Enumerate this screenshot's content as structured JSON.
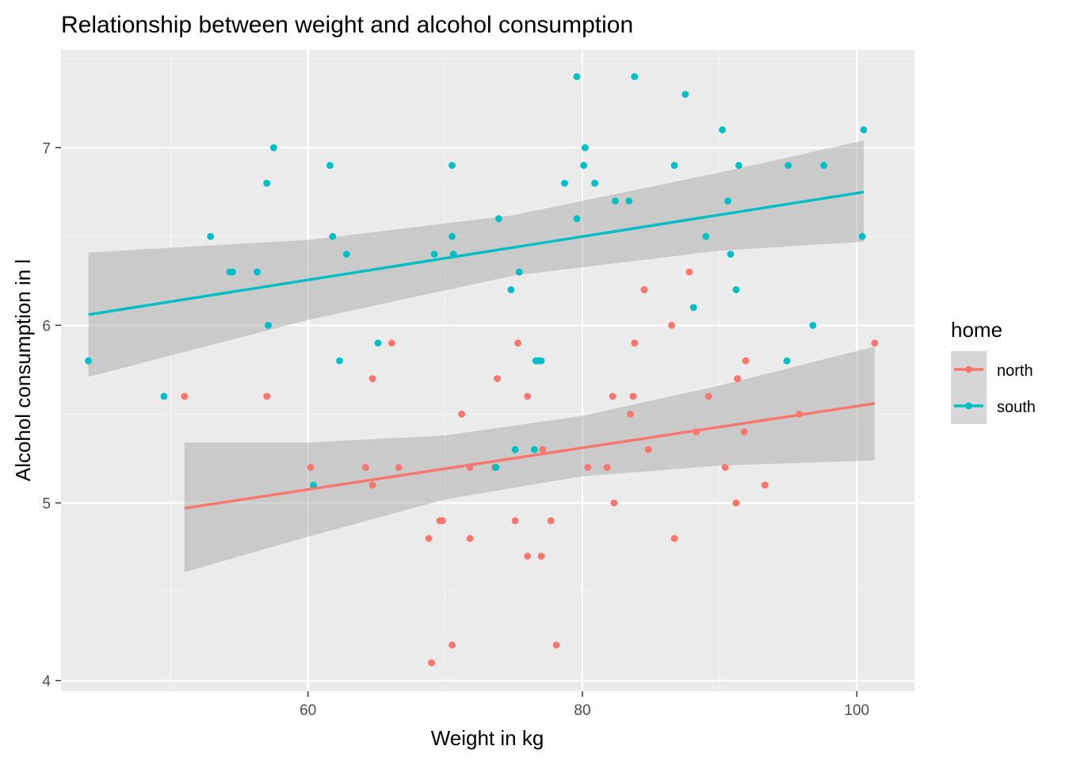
{
  "colors": {
    "panel_bg": "#EBEBEB",
    "grid_major": "#FFFFFF",
    "grid_minor": "#F5F5F5",
    "ribbon": "#999999",
    "north": "#F8766D",
    "south": "#00BFC4",
    "tick": "#333333"
  },
  "chart_data": {
    "type": "scatter",
    "title": "Relationship between weight and alcohol consumption",
    "xlabel": "Weight in kg",
    "ylabel": "Alcohol consumption in l",
    "xlim": [
      42,
      104.2
    ],
    "ylim": [
      3.94,
      7.55
    ],
    "x_ticks": [
      60,
      80,
      100
    ],
    "x_tick_labels": [
      "60",
      "80",
      "100"
    ],
    "y_ticks": [
      4,
      5,
      6,
      7
    ],
    "y_tick_labels": [
      "4",
      "5",
      "6",
      "7"
    ],
    "grid": true,
    "legend": {
      "title": "home",
      "position": "right"
    },
    "series": [
      {
        "name": "north",
        "color": "#F8766D",
        "points": [
          [
            51.0,
            5.6
          ],
          [
            57.0,
            5.6
          ],
          [
            60.2,
            5.2
          ],
          [
            64.2,
            5.2
          ],
          [
            64.7,
            5.7
          ],
          [
            64.7,
            5.1
          ],
          [
            66.1,
            5.9
          ],
          [
            66.6,
            5.2
          ],
          [
            68.8,
            4.8
          ],
          [
            69.0,
            4.1
          ],
          [
            69.6,
            4.9
          ],
          [
            69.8,
            4.9
          ],
          [
            70.5,
            4.2
          ],
          [
            71.2,
            5.5
          ],
          [
            71.8,
            5.2
          ],
          [
            71.8,
            4.8
          ],
          [
            73.6,
            5.2
          ],
          [
            73.8,
            5.7
          ],
          [
            75.1,
            4.9
          ],
          [
            75.3,
            5.9
          ],
          [
            76.0,
            4.7
          ],
          [
            76.0,
            5.6
          ],
          [
            77.0,
            4.7
          ],
          [
            77.1,
            5.3
          ],
          [
            77.7,
            4.9
          ],
          [
            78.1,
            4.2
          ],
          [
            80.4,
            5.2
          ],
          [
            81.8,
            5.2
          ],
          [
            82.2,
            5.6
          ],
          [
            82.3,
            5.0
          ],
          [
            83.5,
            5.5
          ],
          [
            83.7,
            5.6
          ],
          [
            83.8,
            5.9
          ],
          [
            84.5,
            6.2
          ],
          [
            84.8,
            5.3
          ],
          [
            86.5,
            6.0
          ],
          [
            86.7,
            4.8
          ],
          [
            87.8,
            6.3
          ],
          [
            88.3,
            5.4
          ],
          [
            89.2,
            5.6
          ],
          [
            90.4,
            5.2
          ],
          [
            91.2,
            5.0
          ],
          [
            91.3,
            5.7
          ],
          [
            91.8,
            5.4
          ],
          [
            91.9,
            5.8
          ],
          [
            93.3,
            5.1
          ],
          [
            95.8,
            5.5
          ],
          [
            101.3,
            5.9
          ]
        ],
        "fit": {
          "x": [
            51.0,
            101.3
          ],
          "y": [
            4.97,
            5.56
          ]
        },
        "ci": {
          "x": [
            51.0,
            60,
            70,
            80,
            90,
            101.3
          ],
          "upper": [
            5.34,
            5.34,
            5.38,
            5.49,
            5.66,
            5.88
          ],
          "lower": [
            4.61,
            4.81,
            5.02,
            5.15,
            5.21,
            5.24
          ]
        }
      },
      {
        "name": "south",
        "color": "#00BFC4",
        "points": [
          [
            44.0,
            5.8
          ],
          [
            49.5,
            5.6
          ],
          [
            52.9,
            6.5
          ],
          [
            54.3,
            6.3
          ],
          [
            54.5,
            6.3
          ],
          [
            56.3,
            6.3
          ],
          [
            57.0,
            6.8
          ],
          [
            57.1,
            6.0
          ],
          [
            57.5,
            7.0
          ],
          [
            60.4,
            5.1
          ],
          [
            61.6,
            6.9
          ],
          [
            61.8,
            6.5
          ],
          [
            62.3,
            5.8
          ],
          [
            62.8,
            6.4
          ],
          [
            65.1,
            5.9
          ],
          [
            69.2,
            6.4
          ],
          [
            70.5,
            6.9
          ],
          [
            70.5,
            6.5
          ],
          [
            70.6,
            6.4
          ],
          [
            73.7,
            5.2
          ],
          [
            73.9,
            6.6
          ],
          [
            74.8,
            6.2
          ],
          [
            75.1,
            5.3
          ],
          [
            75.4,
            6.3
          ],
          [
            76.5,
            5.3
          ],
          [
            76.6,
            5.8
          ],
          [
            76.8,
            5.8
          ],
          [
            77.0,
            5.8
          ],
          [
            78.7,
            6.8
          ],
          [
            79.6,
            7.4
          ],
          [
            79.6,
            6.6
          ],
          [
            80.1,
            6.9
          ],
          [
            80.2,
            7.0
          ],
          [
            80.9,
            6.8
          ],
          [
            82.4,
            6.7
          ],
          [
            83.4,
            6.7
          ],
          [
            83.8,
            7.4
          ],
          [
            86.7,
            6.9
          ],
          [
            87.5,
            7.3
          ],
          [
            88.1,
            6.1
          ],
          [
            89.0,
            6.5
          ],
          [
            90.2,
            7.1
          ],
          [
            90.6,
            6.7
          ],
          [
            90.8,
            6.4
          ],
          [
            91.2,
            6.2
          ],
          [
            91.4,
            6.9
          ],
          [
            94.9,
            5.8
          ],
          [
            95.0,
            6.9
          ],
          [
            96.8,
            6.0
          ],
          [
            97.6,
            6.9
          ],
          [
            100.4,
            6.5
          ],
          [
            100.5,
            7.1
          ]
        ],
        "fit": {
          "x": [
            44.0,
            100.5
          ],
          "y": [
            6.06,
            6.75
          ]
        },
        "ci": {
          "x": [
            44.0,
            60,
            75,
            90,
            100.5
          ],
          "upper": [
            6.41,
            6.48,
            6.62,
            6.86,
            7.04
          ],
          "lower": [
            5.71,
            6.03,
            6.28,
            6.42,
            6.47
          ]
        }
      }
    ]
  }
}
